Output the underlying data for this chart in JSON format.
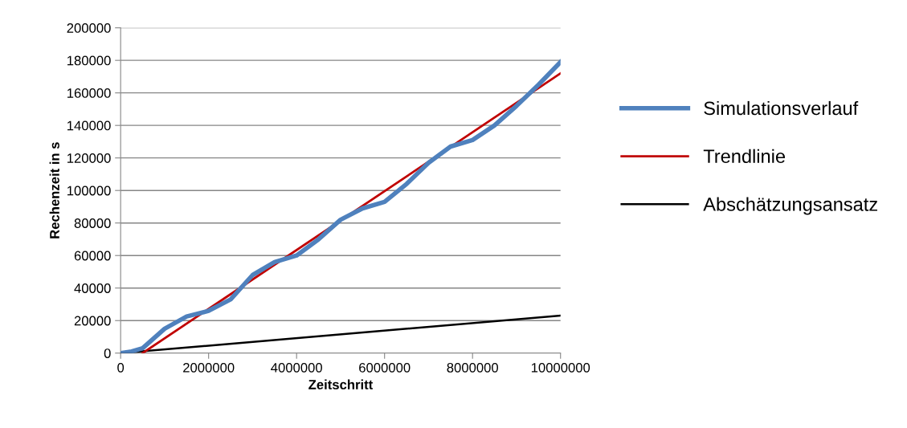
{
  "chart_data": {
    "type": "line",
    "xlabel": "Zeitschritt",
    "ylabel": "Rechenzeit in s",
    "xlim": [
      0,
      10000000
    ],
    "xticks": [
      0,
      2000000,
      4000000,
      6000000,
      8000000,
      10000000
    ],
    "ylim": [
      0,
      200000
    ],
    "yticks": [
      0,
      20000,
      40000,
      60000,
      80000,
      100000,
      120000,
      140000,
      160000,
      180000,
      200000
    ],
    "grid": "y",
    "legend": "right",
    "marker": "none",
    "series": [
      {
        "name": "Simulationsverlauf",
        "color": "#4f81bd",
        "x": [
          0,
          250000,
          500000,
          1000000,
          1500000,
          2000000,
          2500000,
          3000000,
          3500000,
          4000000,
          4500000,
          5000000,
          5500000,
          6000000,
          6500000,
          7000000,
          7500000,
          8000000,
          8500000,
          9000000,
          9500000,
          10000000
        ],
        "values": [
          0,
          1000,
          3000,
          15000,
          22500,
          26000,
          33000,
          48000,
          56000,
          60000,
          70000,
          82000,
          89000,
          93000,
          104000,
          117000,
          127000,
          131000,
          140000,
          152000,
          165000,
          179000
        ]
      },
      {
        "name": "Trendlinie",
        "color": "#c00000",
        "x": [
          500000,
          10000000
        ],
        "values": [
          0,
          172000
        ]
      },
      {
        "name": "Abschätzungsansatz",
        "color": "#000000",
        "x": [
          0,
          10000000
        ],
        "values": [
          0,
          23000
        ]
      }
    ]
  }
}
